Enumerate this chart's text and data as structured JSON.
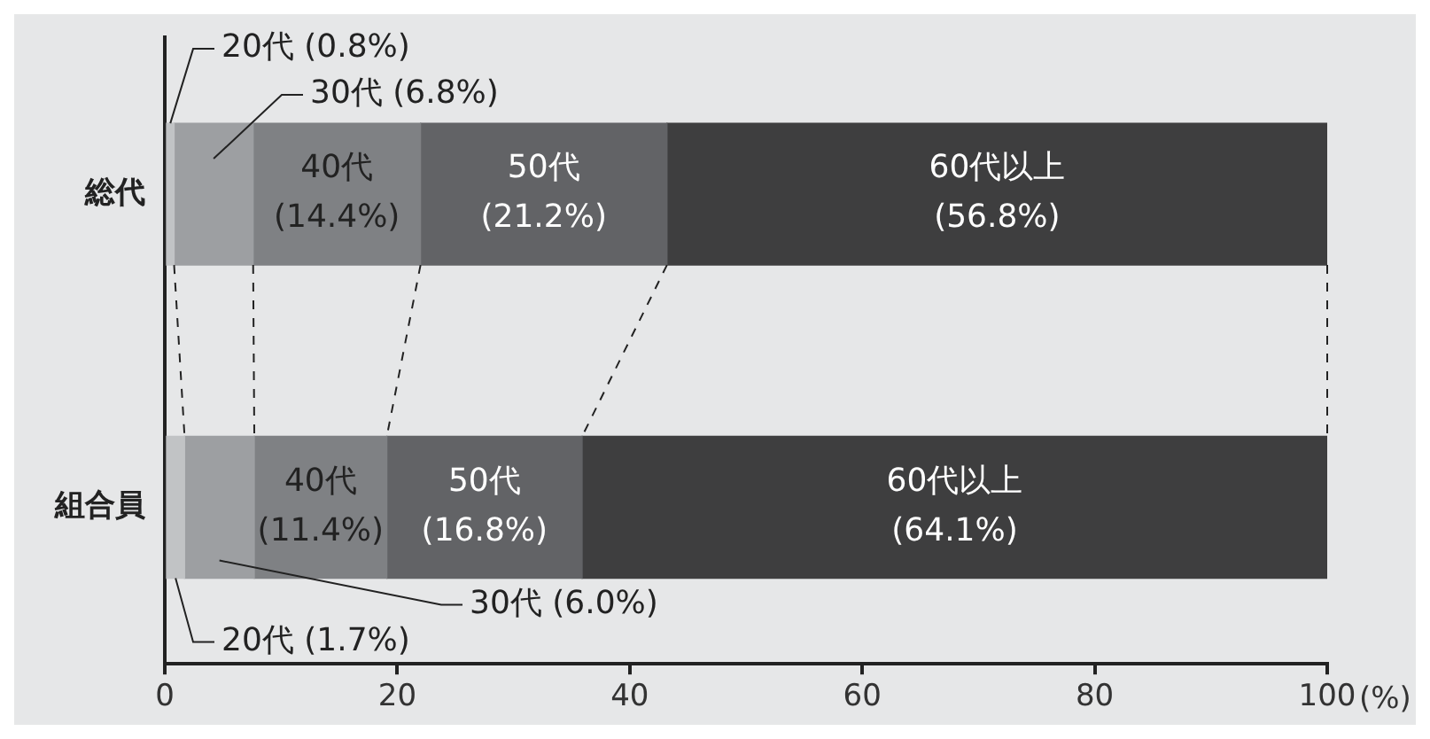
{
  "chart_data": {
    "type": "bar",
    "orientation": "horizontal",
    "stacked": true,
    "categories": [
      "総代",
      "組合員"
    ],
    "xlabel": "(%)",
    "xlim": [
      0,
      100
    ],
    "xticks": [
      0,
      20,
      40,
      60,
      80,
      100
    ],
    "grid": false,
    "legend": false,
    "series": [
      {
        "name": "20代",
        "color": "#c1c3c5",
        "values": [
          0.8,
          1.7
        ],
        "value_labels": [
          "(0.8%)",
          "(1.7%)"
        ]
      },
      {
        "name": "30代",
        "color": "#9d9fa2",
        "values": [
          6.8,
          6.0
        ],
        "value_labels": [
          "(6.8%)",
          "(6.0%)"
        ]
      },
      {
        "name": "40代",
        "color": "#7f8184",
        "values": [
          14.4,
          11.4
        ],
        "value_labels": [
          "(14.4%)",
          "(11.4%)"
        ]
      },
      {
        "name": "50代",
        "color": "#626366",
        "values": [
          21.2,
          16.8
        ],
        "value_labels": [
          "(21.2%)",
          "(16.8%)"
        ]
      },
      {
        "name": "60代以上",
        "color": "#3e3e3f",
        "values": [
          56.8,
          64.1
        ],
        "value_labels": [
          "(56.8%)",
          "(64.1%)"
        ]
      }
    ]
  }
}
